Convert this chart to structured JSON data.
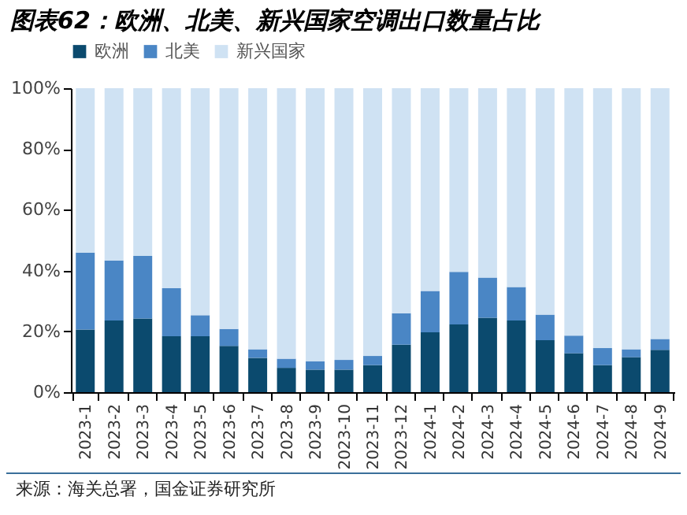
{
  "chart_data": {
    "type": "bar",
    "title": "图表62：欧洲、北美、新兴国家空调出口数量占比",
    "stacked": true,
    "categories": [
      "2023-1",
      "2023-2",
      "2023-3",
      "2023-4",
      "2023-5",
      "2023-6",
      "2023-7",
      "2023-8",
      "2023-9",
      "2023-10",
      "2023-11",
      "2023-12",
      "2024-1",
      "2024-2",
      "2024-3",
      "2024-4",
      "2024-5",
      "2024-6",
      "2024-7",
      "2024-8",
      "2024-9"
    ],
    "series": [
      {
        "name": "欧洲",
        "color": "#0b4a6e",
        "values": [
          20.6,
          23.6,
          24.2,
          18.4,
          18.4,
          15.2,
          11.3,
          8.0,
          7.4,
          7.4,
          8.9,
          15.6,
          19.7,
          22.3,
          24.5,
          23.6,
          17.1,
          12.8,
          8.9,
          11.5,
          13.9
        ]
      },
      {
        "name": "北美",
        "color": "#4a86c5",
        "values": [
          25.3,
          19.7,
          20.6,
          15.8,
          6.9,
          5.6,
          2.8,
          3.0,
          2.8,
          3.2,
          3.0,
          10.4,
          13.6,
          17.3,
          13.2,
          11.0,
          8.4,
          5.8,
          5.6,
          2.6,
          3.6
        ]
      },
      {
        "name": "新兴国家",
        "color": "#cfe2f3",
        "values": [
          54.1,
          56.7,
          55.2,
          65.8,
          74.7,
          79.2,
          85.9,
          89.0,
          89.8,
          89.4,
          88.1,
          74.0,
          66.7,
          60.4,
          62.3,
          65.4,
          74.5,
          81.4,
          85.5,
          85.9,
          82.5
        ]
      }
    ],
    "ylim": [
      0,
      100
    ],
    "yticks": [
      {
        "value": 0,
        "label": "0%"
      },
      {
        "value": 20,
        "label": "20%"
      },
      {
        "value": 40,
        "label": "40%"
      },
      {
        "value": 60,
        "label": "60%"
      },
      {
        "value": 80,
        "label": "80%"
      },
      {
        "value": 100,
        "label": "100%"
      }
    ],
    "legend": "top",
    "grid": false,
    "annotations": [
      "来源：海关总署，国金证券研究所"
    ]
  }
}
